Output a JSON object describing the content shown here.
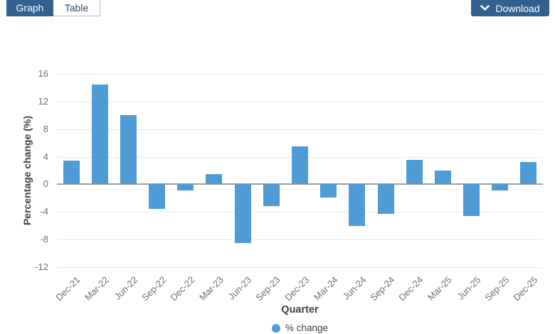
{
  "tabs": [
    {
      "label": "Graph",
      "active": true
    },
    {
      "label": "Table",
      "active": false
    }
  ],
  "download": {
    "label": "Download",
    "icon": "chevron-down-icon"
  },
  "colors": {
    "accent_navy": "#30618f",
    "bar_blue": "#4e9bd5",
    "gridline": "#e8e8e8",
    "zero_line": "#a3a3a3",
    "tick_text": "#6e6e6e",
    "axis_title_text": "#414042"
  },
  "chart_data": {
    "type": "bar",
    "title": "",
    "categories": [
      "Dec-21",
      "Mar-22",
      "Jun-22",
      "Sep-22",
      "Dec-22",
      "Mar-23",
      "Jun-23",
      "Sep-23",
      "Dec-23",
      "Mar-24",
      "Jun-24",
      "Sep-24",
      "Dec-24",
      "Mar-25",
      "Jun-25",
      "Sep-25",
      "Dec-25"
    ],
    "values": [
      3.4,
      14.5,
      10.0,
      -3.6,
      -0.9,
      1.5,
      -8.5,
      -3.1,
      5.5,
      -1.9,
      -6.0,
      -4.3,
      3.5,
      2.0,
      -4.6,
      -0.9,
      3.2
    ],
    "series_name": "% change",
    "xlabel": "Quarter",
    "ylabel": "Percentage change (%)",
    "ylim": [
      -12,
      16
    ],
    "yticks": [
      16,
      12,
      8,
      4,
      0,
      -4,
      -8,
      -12
    ],
    "grid": true,
    "legend_position": "bottom"
  }
}
